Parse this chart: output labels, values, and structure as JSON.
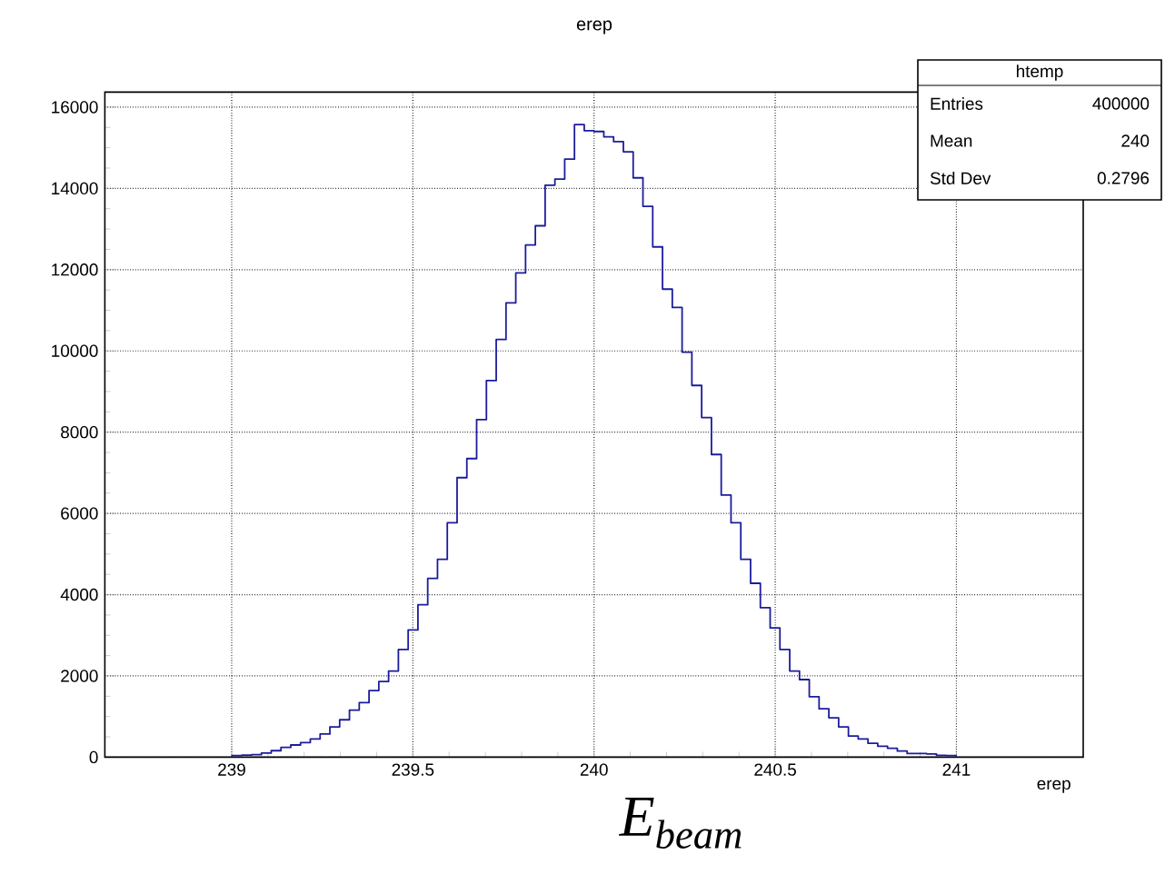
{
  "chart_data": {
    "type": "histogram",
    "title": "erep",
    "xlabel": "erep",
    "bins": [
      239.001,
      239.028,
      239.055,
      239.082,
      239.109,
      239.136,
      239.163,
      239.19,
      239.217,
      239.244,
      239.271,
      239.298,
      239.325,
      239.352,
      239.379,
      239.406,
      239.433,
      239.46,
      239.487,
      239.514,
      239.541,
      239.568,
      239.595,
      239.622,
      239.649,
      239.676,
      239.703,
      239.73,
      239.757,
      239.784,
      239.811,
      239.838,
      239.865,
      239.892,
      239.919,
      239.946,
      239.973,
      240.0,
      240.027,
      240.054,
      240.081,
      240.108,
      240.135,
      240.162,
      240.189,
      240.216,
      240.243,
      240.27,
      240.297,
      240.324,
      240.351,
      240.378,
      240.405,
      240.432,
      240.459,
      240.486,
      240.513,
      240.54,
      240.567,
      240.594,
      240.621,
      240.648,
      240.675,
      240.702,
      240.729,
      240.756,
      240.783,
      240.81,
      240.837,
      240.864,
      240.891,
      240.918,
      240.945,
      240.972,
      240.999
    ],
    "values": [
      40,
      50,
      60,
      100,
      160,
      240,
      300,
      360,
      450,
      570,
      745,
      920,
      1160,
      1340,
      1640,
      1860,
      2120,
      2650,
      3130,
      3750,
      4400,
      4870,
      5770,
      6880,
      7350,
      8310,
      9270,
      10280,
      11180,
      11920,
      12610,
      13080,
      14080,
      14230,
      14720,
      15570,
      15420,
      15400,
      15270,
      15150,
      14900,
      14260,
      13560,
      12560,
      11520,
      11070,
      9970,
      9150,
      8360,
      7450,
      6450,
      5770,
      4870,
      4280,
      3680,
      3180,
      2650,
      2120,
      1910,
      1490,
      1190,
      970,
      745,
      520,
      450,
      340,
      270,
      220,
      150,
      90,
      90,
      80,
      45,
      40
    ],
    "color": "#1c1c9c",
    "xlim": [
      238.65,
      241.35
    ],
    "ylim": [
      0,
      16370
    ],
    "xticks": [
      239,
      239.5,
      240,
      240.5,
      241
    ],
    "yticks": [
      0,
      2000,
      4000,
      6000,
      8000,
      10000,
      12000,
      14000,
      16000
    ],
    "grid": true,
    "annotations": [
      "htemp",
      "Entries",
      "400000",
      "Mean",
      "240",
      "Std Dev",
      "0.2796",
      "E$_{beam}$"
    ]
  }
}
